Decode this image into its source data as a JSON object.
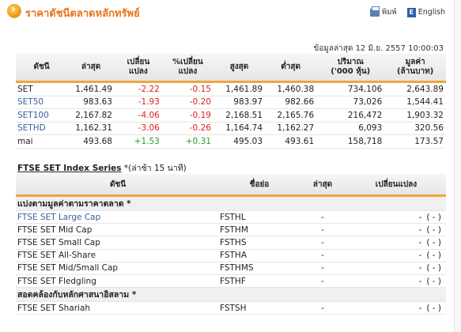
{
  "header": {
    "title": "ราคาดัชนีตลาดหลักทรัพย์",
    "print_label": "พิมพ์",
    "english_label": "English",
    "english_icon_letter": "E"
  },
  "timestamp": "ข้อมูลล่าสุด 12 มิ.ย. 2557 10:00:03",
  "index_table": {
    "columns": [
      {
        "l1": "ดัชนี",
        "l2": ""
      },
      {
        "l1": "ล่าสุด",
        "l2": ""
      },
      {
        "l1": "เปลี่ยน",
        "l2": "แปลง"
      },
      {
        "l1": "%เปลี่ยน",
        "l2": "แปลง"
      },
      {
        "l1": "สูงสุด",
        "l2": ""
      },
      {
        "l1": "ต่ำสุด",
        "l2": ""
      },
      {
        "l1": "ปริมาณ",
        "l2": "('000 หุ้น)"
      },
      {
        "l1": "มูลค่า",
        "l2": "(ล้านบาท)"
      }
    ],
    "rows": [
      {
        "name": "SET",
        "last": "1,461.49",
        "chg": "-2.22",
        "pchg": "-0.15",
        "high": "1,461.89",
        "low": "1,460.38",
        "vol": "734,106",
        "val": "2,643.89"
      },
      {
        "name": "SET50",
        "last": "983.63",
        "chg": "-1.93",
        "pchg": "-0.20",
        "high": "983.97",
        "low": "982.66",
        "vol": "73,026",
        "val": "1,544.41"
      },
      {
        "name": "SET100",
        "last": "2,167.82",
        "chg": "-4.06",
        "pchg": "-0.19",
        "high": "2,168.51",
        "low": "2,165.76",
        "vol": "216,472",
        "val": "1,903.32"
      },
      {
        "name": "SETHD",
        "last": "1,162.31",
        "chg": "-3.06",
        "pchg": "-0.26",
        "high": "1,164.74",
        "low": "1,162.27",
        "vol": "6,093",
        "val": "320.56"
      },
      {
        "name": "mai",
        "last": "493.68",
        "chg": "+1.53",
        "pchg": "+0.31",
        "high": "495.03",
        "low": "493.61",
        "vol": "158,718",
        "val": "173.57"
      }
    ]
  },
  "ftse": {
    "heading": "FTSE SET Index Series",
    "heading_note": "*(ล่าช้า 15 นาที)",
    "columns": {
      "name": "ดัชนี",
      "symbol": "ชื่อย่อ",
      "last": "ล่าสุด",
      "change": "เปลี่ยนแปลง"
    },
    "groups": [
      {
        "label": "แบ่งตามมูลค่าตามราคาตลาด *",
        "rows": [
          {
            "name": "FTSE SET Large Cap",
            "symbol": "FSTHL",
            "last": "-",
            "change": "-",
            "pct": "( - )",
            "link": true
          },
          {
            "name": "FTSE SET Mid Cap",
            "symbol": "FSTHM",
            "last": "-",
            "change": "-",
            "pct": "( - )",
            "link": false
          },
          {
            "name": "FTSE SET Small Cap",
            "symbol": "FSTHS",
            "last": "-",
            "change": "-",
            "pct": "( - )",
            "link": false
          },
          {
            "name": "FTSE SET All-Share",
            "symbol": "FSTHA",
            "last": "-",
            "change": "-",
            "pct": "( - )",
            "link": false
          },
          {
            "name": "FTSE SET Mid/Small Cap",
            "symbol": "FSTHMS",
            "last": "-",
            "change": "-",
            "pct": "( - )",
            "link": false
          },
          {
            "name": "FTSE SET Fledgling",
            "symbol": "FSTHF",
            "last": "-",
            "change": "-",
            "pct": "( - )",
            "link": false
          }
        ]
      },
      {
        "label": "สอดคล้องกับหลักศาสนาอิสลาม *",
        "rows": [
          {
            "name": "FTSE SET Shariah",
            "symbol": "FSTSH",
            "last": "-",
            "change": "-",
            "pct": "( - )",
            "link": false
          }
        ]
      }
    ]
  }
}
